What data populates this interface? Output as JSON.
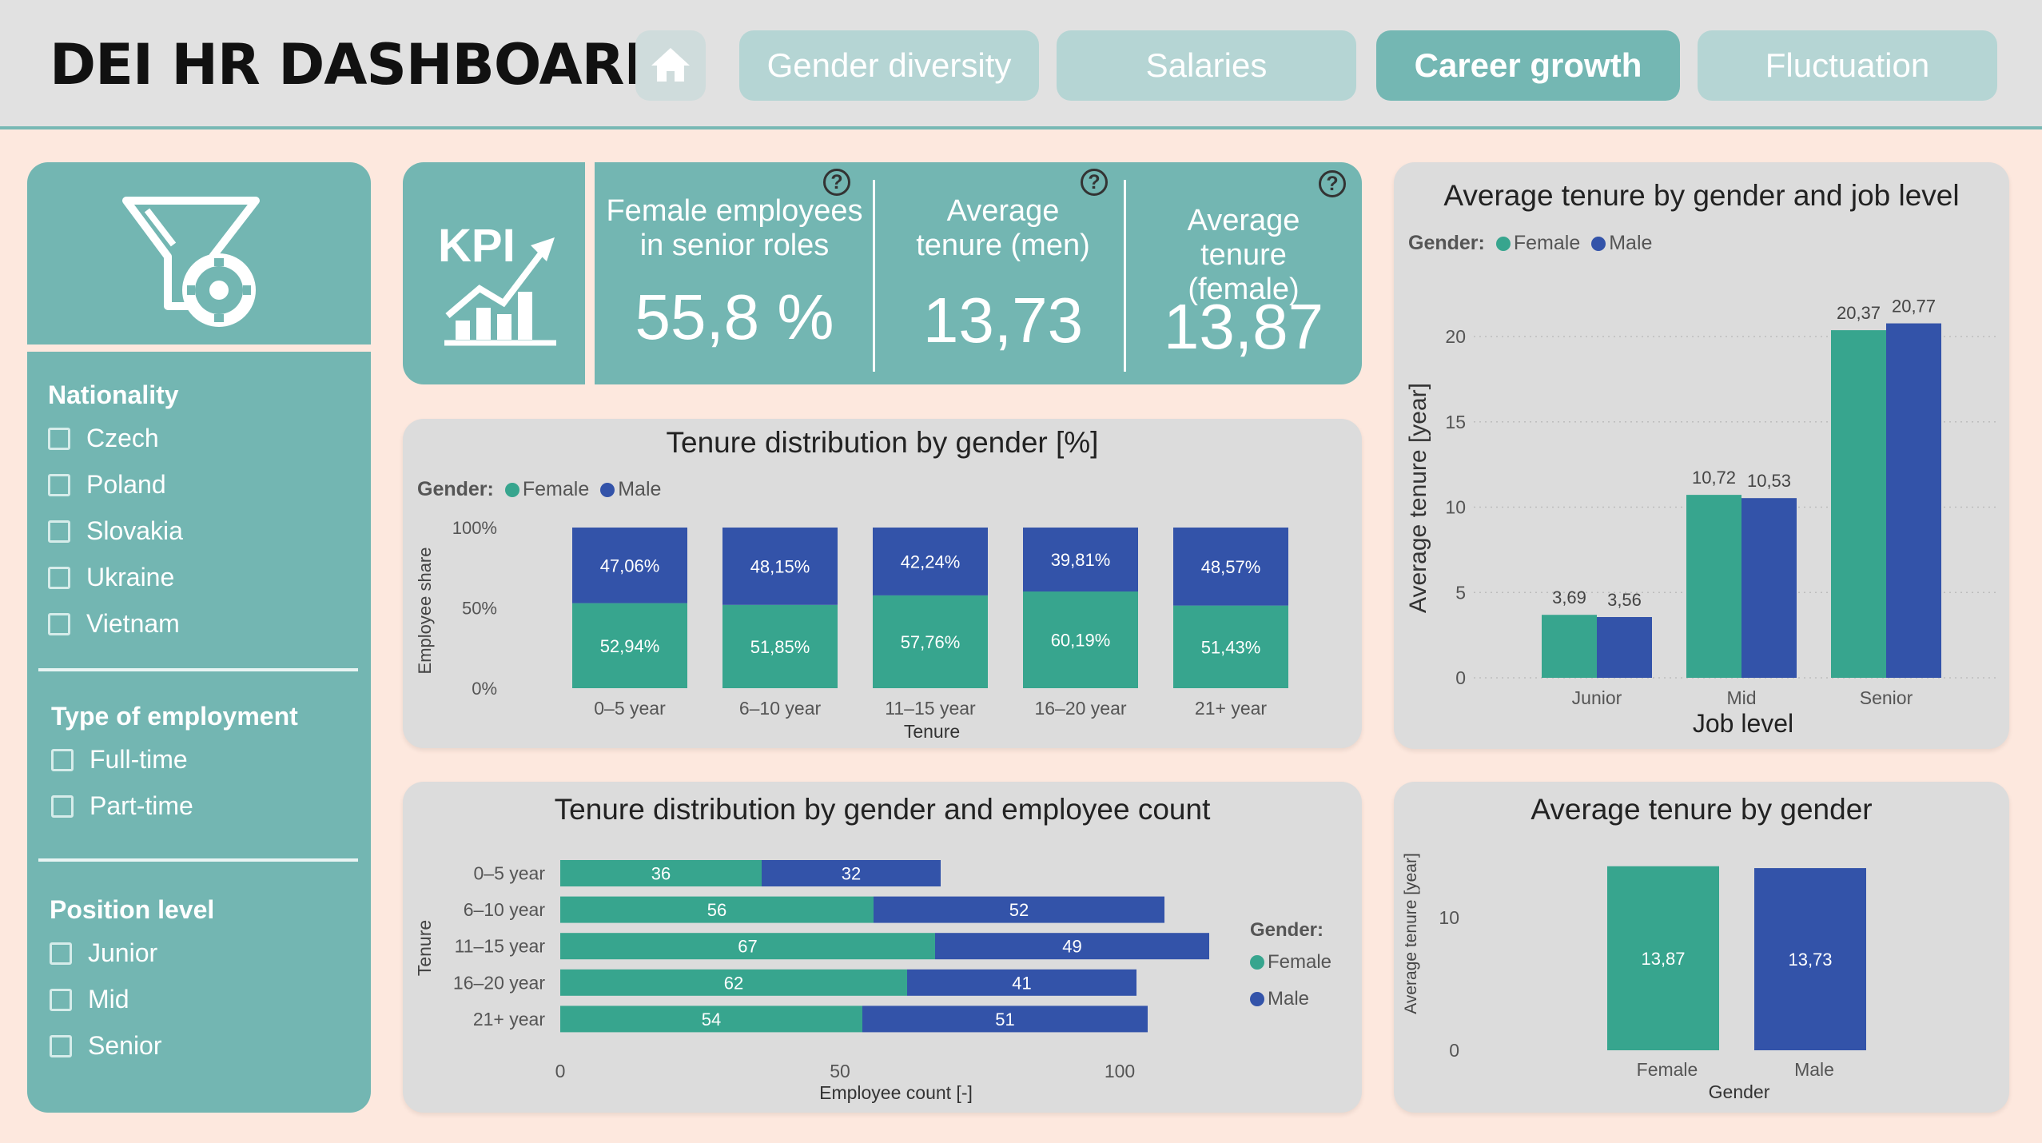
{
  "header": {
    "title": "DEI HR DASHBOARD",
    "tabs": [
      {
        "label": "Gender diversity",
        "active": false
      },
      {
        "label": "Salaries",
        "active": false
      },
      {
        "label": "Career growth",
        "active": true
      },
      {
        "label": "Fluctuation",
        "active": false
      }
    ]
  },
  "colors": {
    "female": "#37a58e",
    "male": "#3353a9",
    "teal": "#73b6b2"
  },
  "filters": {
    "nationality": {
      "title": "Nationality",
      "options": [
        "Czech",
        "Poland",
        "Slovakia",
        "Ukraine",
        "Vietnam"
      ]
    },
    "employment": {
      "title": "Type of employment",
      "options": [
        "Full-time",
        "Part-time"
      ]
    },
    "position": {
      "title": "Position level",
      "options": [
        "Junior",
        "Mid",
        "Senior"
      ]
    }
  },
  "kpis": {
    "logo_text": "KPI",
    "items": [
      {
        "label": "Female employees in senior roles",
        "value": "55,8 %"
      },
      {
        "label": "Average tenure (men)",
        "value": "13,73"
      },
      {
        "label": "Average tenure (female)",
        "value": "13,87"
      }
    ],
    "help_glyph": "?"
  },
  "chart_data": [
    {
      "type": "bar",
      "stacked": "percent",
      "title": "Tenure distribution by gender [%]",
      "legend_title": "Gender:",
      "xlabel": "Tenure",
      "ylabel": "Employee share",
      "yticks": [
        "0%",
        "50%",
        "100%"
      ],
      "categories": [
        "0–5 year",
        "6–10 year",
        "11–15 year",
        "16–20 year",
        "21+ year"
      ],
      "series": [
        {
          "name": "Female",
          "values": [
            52.94,
            51.85,
            57.76,
            60.19,
            51.43
          ],
          "labels": [
            "52,94%",
            "51,85%",
            "57,76%",
            "60,19%",
            "51,43%"
          ]
        },
        {
          "name": "Male",
          "values": [
            47.06,
            48.15,
            42.24,
            39.81,
            48.57
          ],
          "labels": [
            "47,06%",
            "48,15%",
            "42,24%",
            "39,81%",
            "48,57%"
          ]
        }
      ]
    },
    {
      "type": "bar",
      "orientation": "horizontal",
      "stacked": true,
      "title": "Tenure distribution by gender and employee count",
      "legend_title": "Gender:",
      "xlabel": "Employee count [-]",
      "ylabel": "Tenure",
      "xlim": [
        0,
        115
      ],
      "xticks": [
        0,
        50,
        100
      ],
      "categories": [
        "0–5 year",
        "6–10 year",
        "11–15 year",
        "16–20 year",
        "21+ year"
      ],
      "series": [
        {
          "name": "Female",
          "values": [
            36,
            56,
            67,
            62,
            54
          ]
        },
        {
          "name": "Male",
          "values": [
            32,
            52,
            49,
            41,
            51
          ]
        }
      ]
    },
    {
      "type": "bar",
      "title": "Average tenure by gender and job level",
      "legend_title": "Gender:",
      "xlabel": "Job level",
      "ylabel": "Average tenure [year]",
      "ylim": [
        0,
        22
      ],
      "yticks": [
        0,
        5,
        10,
        15,
        20
      ],
      "categories": [
        "Junior",
        "Mid",
        "Senior"
      ],
      "series": [
        {
          "name": "Female",
          "values": [
            3.69,
            10.72,
            20.37
          ],
          "labels": [
            "3,69",
            "10,72",
            "20,37"
          ]
        },
        {
          "name": "Male",
          "values": [
            3.56,
            10.53,
            20.77
          ],
          "labels": [
            "3,56",
            "10,53",
            "20,77"
          ]
        }
      ]
    },
    {
      "type": "bar",
      "title": "Average tenure by gender",
      "xlabel": "Gender",
      "ylabel": "Average tenure [year]",
      "ylim": [
        0,
        15
      ],
      "yticks": [
        0,
        10
      ],
      "categories": [
        "Female",
        "Male"
      ],
      "values": [
        13.87,
        13.73
      ],
      "labels": [
        "13,87",
        "13,73"
      ]
    }
  ]
}
